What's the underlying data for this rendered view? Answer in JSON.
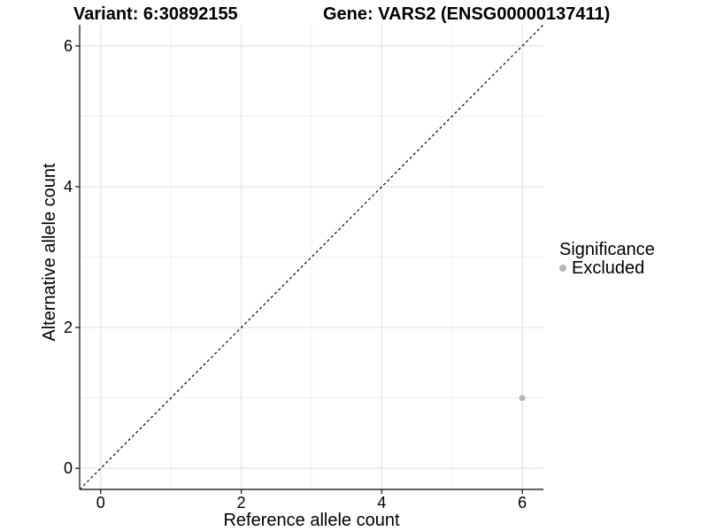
{
  "chart_data": {
    "type": "scatter",
    "titles": {
      "left": "Variant: 6:30892155",
      "right": "Gene: VARS2 (ENSG00000137411)"
    },
    "xlabel": "Reference allele count",
    "ylabel": "Alternative allele count",
    "xlim": [
      -0.3,
      6.3
    ],
    "ylim": [
      -0.3,
      6.3
    ],
    "x_ticks": [
      0,
      2,
      4,
      6
    ],
    "y_ticks": [
      0,
      2,
      4,
      6
    ],
    "x_minor_gridlines": [
      1,
      3,
      5
    ],
    "y_minor_gridlines": [
      1,
      3,
      5
    ],
    "grid": "major+minor",
    "series": [
      {
        "name": "Excluded",
        "color": "#b7b7b7",
        "points": [
          {
            "x": 6,
            "y": 1
          }
        ]
      }
    ],
    "reference_line": {
      "kind": "identity",
      "style": "dashed",
      "color": "#000000"
    },
    "legend": {
      "title": "Significance",
      "position": "right",
      "items": [
        {
          "label": "Excluded",
          "color": "#b7b7b7"
        }
      ]
    }
  },
  "colors": {
    "background": "#ffffff",
    "major_grid": "#e3e3e3",
    "minor_grid": "#eeeeee",
    "axis_line": "#2b2b2b",
    "tick_label": "#000000",
    "title_text": "#000000"
  }
}
